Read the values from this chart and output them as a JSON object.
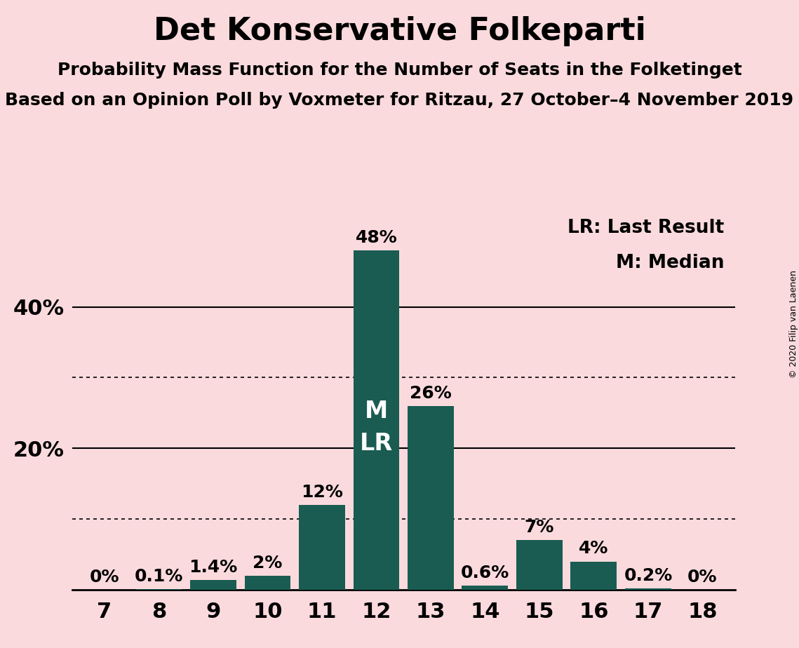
{
  "title": "Det Konservative Folkeparti",
  "subtitle1": "Probability Mass Function for the Number of Seats in the Folketinget",
  "subtitle2": "Based on an Opinion Poll by Voxmeter for Ritzau, 27 October–4 November 2019",
  "copyright": "© 2020 Filip van Laenen",
  "categories": [
    7,
    8,
    9,
    10,
    11,
    12,
    13,
    14,
    15,
    16,
    17,
    18
  ],
  "values": [
    0.0,
    0.1,
    1.4,
    2.0,
    12.0,
    48.0,
    26.0,
    0.6,
    7.0,
    4.0,
    0.2,
    0.0
  ],
  "labels": [
    "0%",
    "0.1%",
    "1.4%",
    "2%",
    "12%",
    "48%",
    "26%",
    "0.6%",
    "7%",
    "4%",
    "0.2%",
    "0%"
  ],
  "bar_color": "#1a5c52",
  "background_color": "#fadadd",
  "median_seat": 12,
  "last_result_seat": 12,
  "median_label": "M",
  "last_result_label": "LR",
  "legend_lr": "LR: Last Result",
  "legend_m": "M: Median",
  "solid_gridlines": [
    20.0,
    40.0
  ],
  "dotted_gridlines": [
    10.0,
    30.0
  ],
  "ylim": [
    0,
    55
  ],
  "title_fontsize": 32,
  "subtitle_fontsize": 18,
  "tick_fontsize": 22,
  "bar_label_fontsize": 18,
  "inside_label_fontsize": 24,
  "legend_fontsize": 19
}
